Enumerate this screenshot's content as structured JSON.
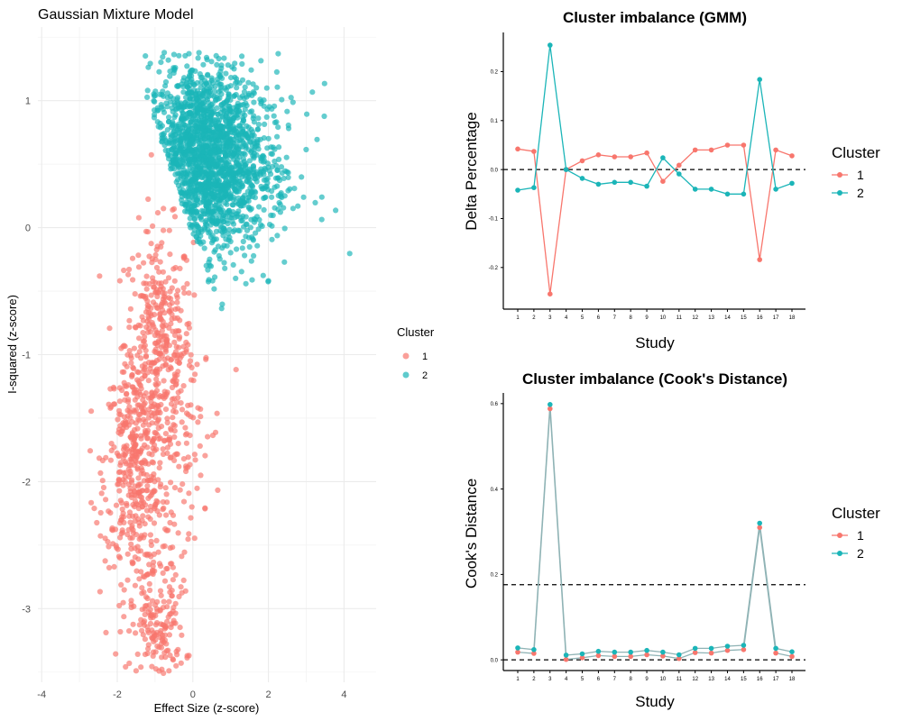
{
  "colors": {
    "cluster_1": "#f8766d",
    "cluster_2": "#1bb5b8",
    "grid": "#ebebeb",
    "axis": "#000000",
    "overlap_line": "#8fb3b5"
  },
  "chart_data": [
    {
      "id": "gmm_scatter",
      "type": "scatter",
      "title": "Gaussian Mixture Model",
      "xlabel": "Effect Size (z-score)",
      "ylabel": "I-squared (z-score)",
      "xlim": [
        -4.1,
        4.85
      ],
      "ylim": [
        -3.58,
        1.58
      ],
      "x_ticks": [
        -4,
        -2,
        0,
        2,
        4
      ],
      "y_ticks": [
        -3,
        -2,
        -1,
        0,
        1
      ],
      "grid": true,
      "legend": {
        "title": "Cluster",
        "entries": [
          "1",
          "2"
        ],
        "position": "right"
      },
      "series": [
        {
          "name": "1",
          "description": "teal-free lower region: points below the diagonal boundary, x roughly -3.7 to 1.2, y roughly -3.55 to 0.25",
          "clusters": [
            {
              "cx": -0.9,
              "cy": -0.9,
              "sx": 0.45,
              "sy": 0.45,
              "n": 380
            },
            {
              "cx": -1.55,
              "cy": -1.85,
              "sx": 0.4,
              "sy": 0.4,
              "n": 330
            },
            {
              "cx": -1.25,
              "cy": -2.6,
              "sx": 0.55,
              "sy": 0.4,
              "n": 150
            },
            {
              "cx": -0.9,
              "cy": -3.2,
              "sx": 0.35,
              "sy": 0.18,
              "n": 110
            },
            {
              "cx": -0.3,
              "cy": -1.6,
              "sx": 0.55,
              "sy": 0.4,
              "n": 90
            }
          ]
        },
        {
          "name": "2",
          "description": "upper region: points above the diagonal boundary, x roughly -1.6 to 4.5, y roughly -0.7 to 1.35",
          "clusters": [
            {
              "cx": 0.3,
              "cy": 0.55,
              "sx": 0.75,
              "sy": 0.38,
              "n": 1700
            },
            {
              "cx": 1.6,
              "cy": 0.4,
              "sx": 0.8,
              "sy": 0.35,
              "n": 180
            }
          ]
        }
      ]
    },
    {
      "id": "gmm_imbalance",
      "type": "line",
      "title": "Cluster imbalance (GMM)",
      "xlabel": "Study",
      "ylabel": "Delta Percentage",
      "categories": [
        "1",
        "2",
        "3",
        "4",
        "5",
        "6",
        "7",
        "8",
        "9",
        "10",
        "11",
        "12",
        "13",
        "14",
        "15",
        "16",
        "17",
        "18"
      ],
      "ylim": [
        -0.285,
        0.28
      ],
      "y_ticks": [
        -0.2,
        -0.1,
        0.0,
        0.1,
        0.2
      ],
      "y_tick_labels": [
        "-0.2",
        "-0.1",
        "0.0",
        "0.1",
        "0.2"
      ],
      "hline": [
        0.0
      ],
      "legend": {
        "title": "Cluster",
        "entries": [
          "1",
          "2"
        ],
        "position": "right"
      },
      "series": [
        {
          "name": "1",
          "values": [
            0.042,
            0.037,
            -0.254,
            0.0,
            0.018,
            0.03,
            0.026,
            0.026,
            0.034,
            -0.024,
            0.009,
            0.04,
            0.04,
            0.05,
            0.05,
            -0.184,
            0.04,
            0.028
          ]
        },
        {
          "name": "2",
          "values": [
            -0.042,
            -0.037,
            0.254,
            0.0,
            -0.018,
            -0.03,
            -0.026,
            -0.026,
            -0.034,
            0.024,
            -0.009,
            -0.04,
            -0.04,
            -0.05,
            -0.05,
            0.184,
            -0.04,
            -0.028
          ]
        }
      ]
    },
    {
      "id": "cooks_imbalance",
      "type": "line",
      "title": "Cluster imbalance (Cook's Distance)",
      "xlabel": "Study",
      "ylabel": "Cook's Distance",
      "categories": [
        "1",
        "2",
        "3",
        "4",
        "5",
        "6",
        "7",
        "8",
        "9",
        "10",
        "11",
        "12",
        "13",
        "14",
        "15",
        "16",
        "17",
        "18"
      ],
      "ylim": [
        -0.025,
        0.625
      ],
      "y_ticks": [
        0.0,
        0.2,
        0.4,
        0.6
      ],
      "y_tick_labels": [
        "0.0",
        "0.2",
        "0.4",
        "0.6"
      ],
      "hline": [
        0.0,
        0.176
      ],
      "legend": {
        "title": "Cluster",
        "entries": [
          "1",
          "2"
        ],
        "position": "right"
      },
      "series": [
        {
          "name": "1",
          "values": [
            0.018,
            0.015,
            0.588,
            0.001,
            0.005,
            0.01,
            0.008,
            0.008,
            0.012,
            0.009,
            0.003,
            0.017,
            0.016,
            0.022,
            0.024,
            0.31,
            0.016,
            0.008
          ]
        },
        {
          "name": "2",
          "values": [
            0.028,
            0.024,
            0.598,
            0.011,
            0.014,
            0.02,
            0.018,
            0.018,
            0.022,
            0.018,
            0.012,
            0.027,
            0.027,
            0.032,
            0.034,
            0.32,
            0.027,
            0.019
          ]
        }
      ]
    }
  ]
}
